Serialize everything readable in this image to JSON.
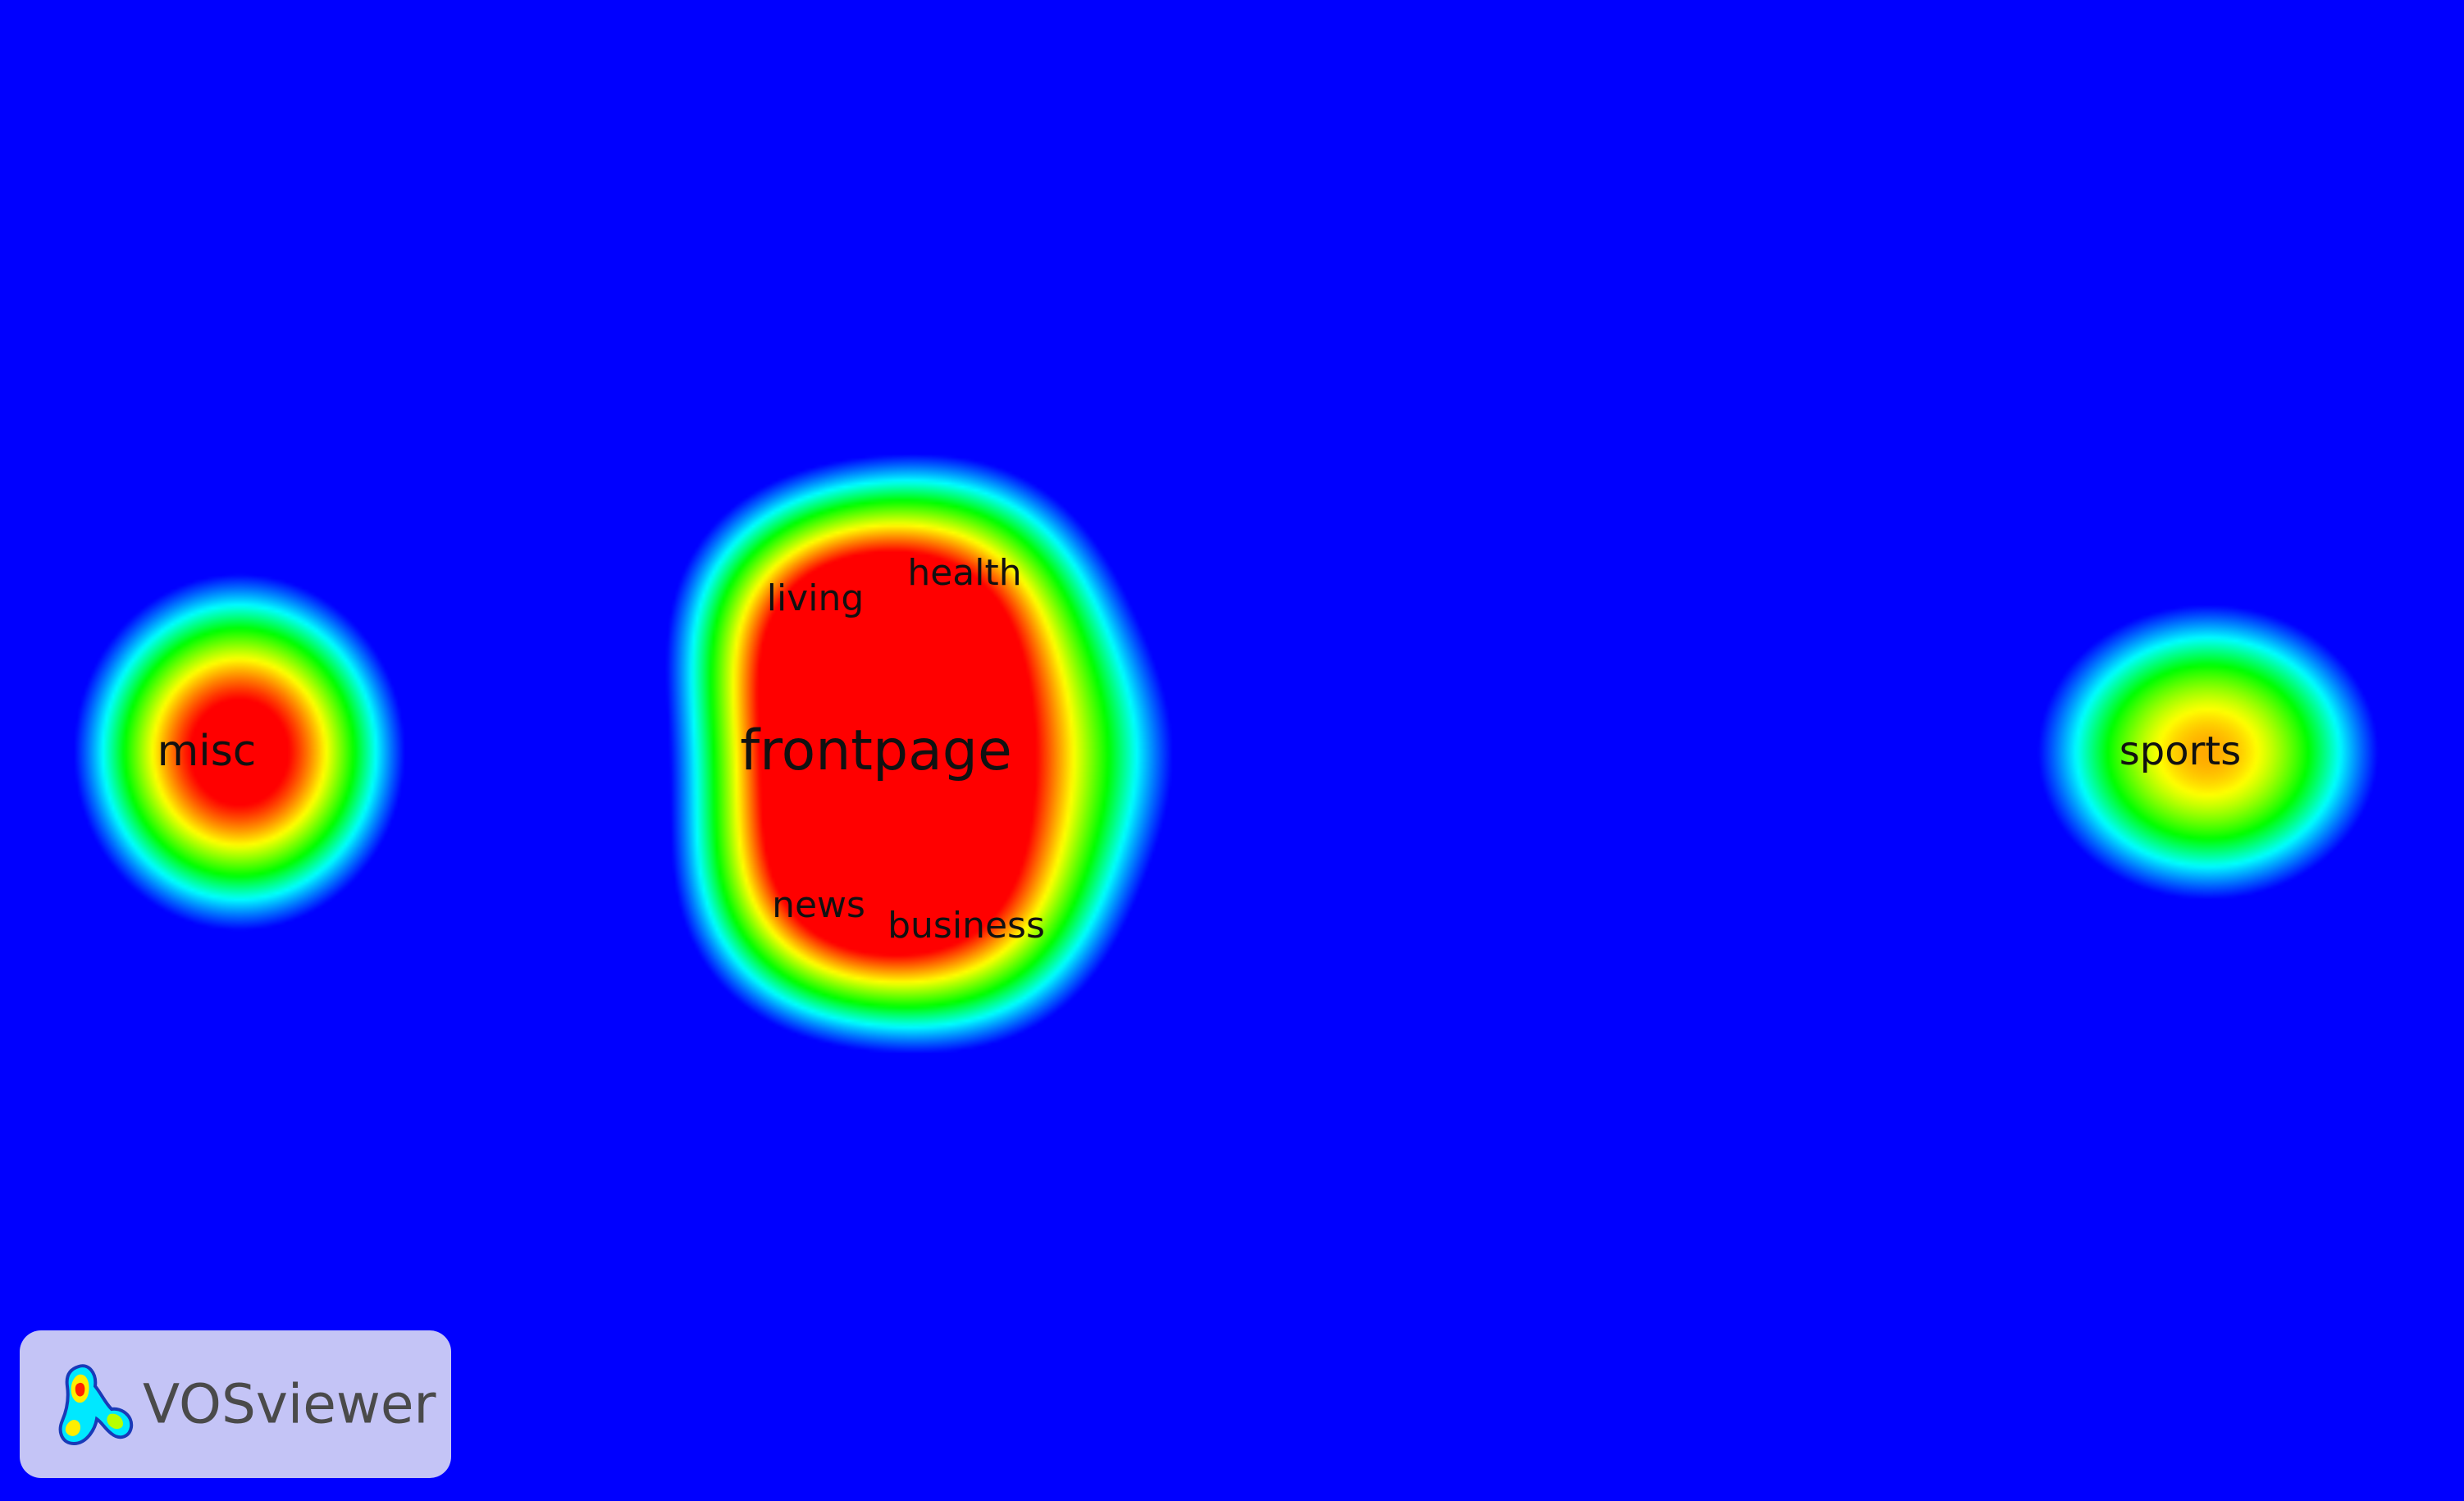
{
  "map": {
    "background_color": "#0000ff",
    "color_scale": [
      "#0000ff",
      "#00ffff",
      "#00ff00",
      "#ffff00",
      "#ff0000"
    ],
    "terms": [
      {
        "id": "misc",
        "label": "misc",
        "density": 1.0
      },
      {
        "id": "frontpage",
        "label": "frontpage",
        "density": 1.0
      },
      {
        "id": "living",
        "label": "living",
        "density": 0.55
      },
      {
        "id": "health",
        "label": "health",
        "density": 0.55
      },
      {
        "id": "news",
        "label": "news",
        "density": 0.55
      },
      {
        "id": "business",
        "label": "business",
        "density": 0.55
      },
      {
        "id": "sports",
        "label": "sports",
        "density": 0.72
      }
    ]
  },
  "logo": {
    "text": "VOSviewer",
    "icon": "vosviewer-logo-icon"
  }
}
